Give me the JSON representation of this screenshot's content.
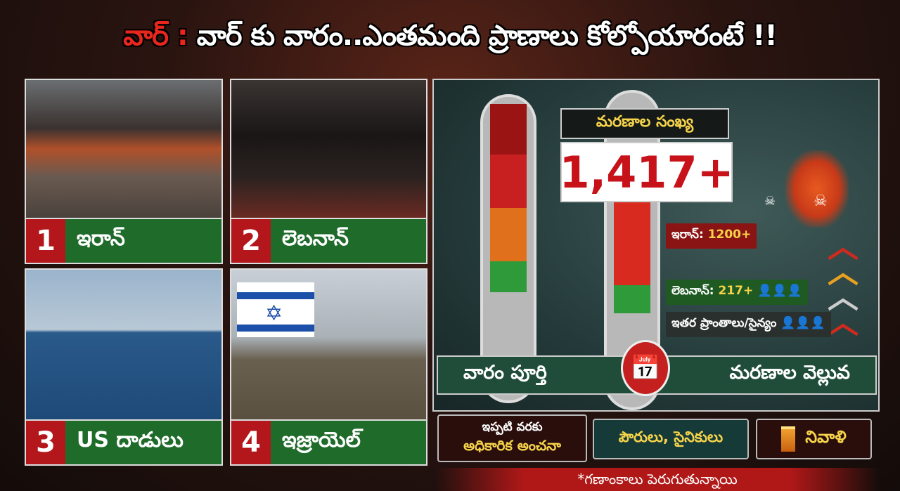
{
  "title": {
    "prefix": "వార్ :",
    "main": "వార్ కు వారం..ఎంతమంది ప్రాణాలు కోల్పోయారంటే !!"
  },
  "panels": [
    {
      "number": "1",
      "label": "ఇరాన్"
    },
    {
      "number": "2",
      "label": "లెబనాన్"
    },
    {
      "number": "3",
      "label": "US దాడులు"
    },
    {
      "number": "4",
      "label": "ఇజ్రాయెల్"
    }
  ],
  "infographic": {
    "death_count_label": "మరణాల సంఖ్య",
    "death_count": "1,417+",
    "stats": [
      {
        "label": "ఇరాన్:",
        "value": "1200+"
      },
      {
        "label": "లెబనాన్:",
        "value": "217+"
      },
      {
        "label": "ఇతర ప్రాంతాలు/సైన్యం",
        "value": ""
      }
    ],
    "banner_left": "వారం పూర్తి",
    "banner_right": "మరణాల వెల్లువ",
    "colors": {
      "accent_red": "#c8121a",
      "highlight_yellow": "#f5d34a",
      "green": "#1f6b2a"
    }
  },
  "bottom_boxes": [
    {
      "line1": "ఇప్పటి వరకు",
      "line2": "అధికారిక అంచనా"
    },
    {
      "text": "పౌరులు, సైనికులు"
    },
    {
      "text": "నివాళి"
    }
  ],
  "footnote": "*గణాంకాలు పెరుగుతున్నాయి"
}
